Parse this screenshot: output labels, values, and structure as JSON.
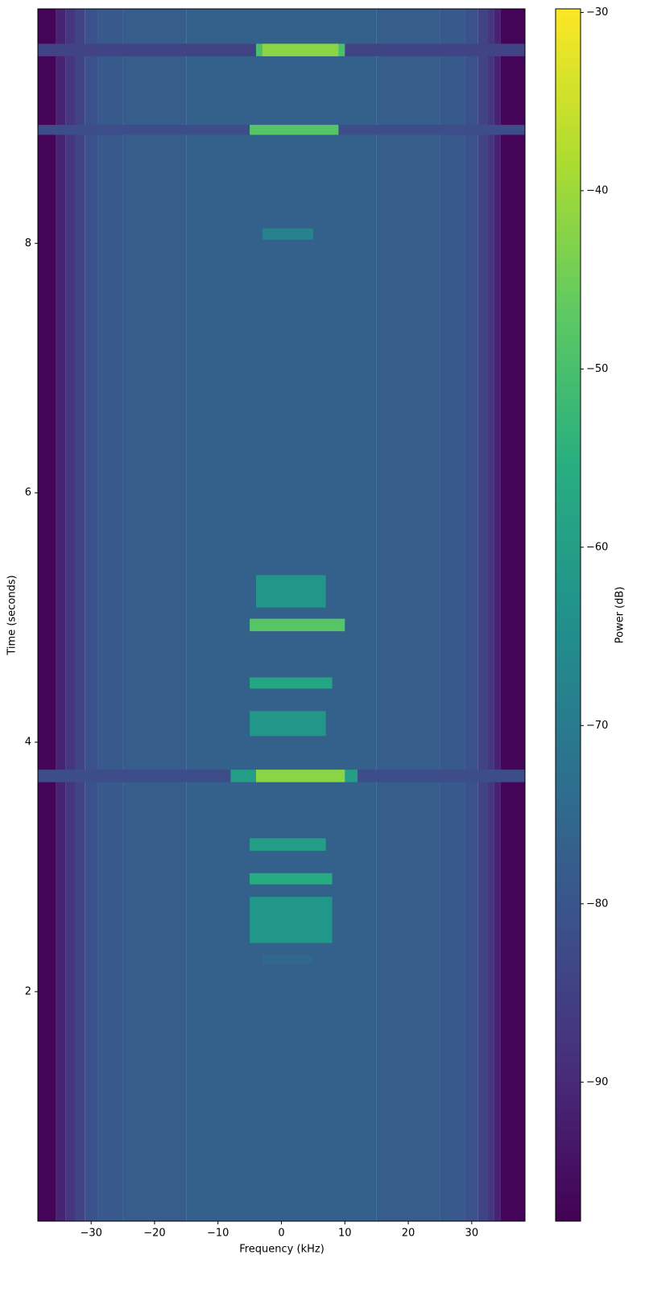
{
  "chart_data": {
    "type": "spectrogram",
    "xlabel": "Frequency (kHz)",
    "ylabel": "Time (seconds)",
    "xlim": [
      -38.4,
      38.4
    ],
    "ylim": [
      0.16,
      9.88
    ],
    "xticks": [
      {
        "value": -30,
        "label": "−30"
      },
      {
        "value": -20,
        "label": "−20"
      },
      {
        "value": -10,
        "label": "−10"
      },
      0,
      10,
      20,
      30
    ],
    "yticks": [
      2,
      4,
      6,
      8
    ],
    "colormap": "viridis",
    "colormap_colors": [
      "#440154",
      "#472d7b",
      "#3b528b",
      "#2c728e",
      "#21918c",
      "#28ae80",
      "#5ec962",
      "#addc30",
      "#fde725"
    ],
    "colorbar": {
      "label": "Power (dB)",
      "lim": [
        -97.8,
        -29.8
      ],
      "ticks": [
        {
          "value": -30,
          "label": "−30"
        },
        {
          "value": -40,
          "label": "−40"
        },
        {
          "value": -50,
          "label": "−50"
        },
        {
          "value": -60,
          "label": "−60"
        },
        {
          "value": -70,
          "label": "−70"
        },
        {
          "value": -80,
          "label": "−80"
        },
        {
          "value": -90,
          "label": "−90"
        }
      ]
    },
    "profile": {
      "bins": [
        -38.4,
        -35.5,
        -34,
        -32.5,
        -31,
        -29,
        -25,
        -15,
        15,
        25,
        29,
        31,
        32.5,
        33.5,
        34.5,
        38.4
      ],
      "values": [
        -97,
        -91,
        -87,
        -84,
        -81,
        -79,
        -78,
        -77,
        -78,
        -79,
        -81,
        -84,
        -87,
        -91,
        -97
      ]
    },
    "bursts": [
      {
        "t": [
          9.5,
          9.6
        ],
        "f": [
          -38.4,
          38.4
        ],
        "power": -84
      },
      {
        "t": [
          9.5,
          9.6
        ],
        "f": [
          -4,
          10
        ],
        "power": -50
      },
      {
        "t": [
          9.5,
          9.6
        ],
        "f": [
          -3,
          9
        ],
        "power": -42
      },
      {
        "t": [
          8.87,
          8.95
        ],
        "f": [
          -38.4,
          38.4
        ],
        "power": -82
      },
      {
        "t": [
          8.87,
          8.95
        ],
        "f": [
          -5,
          9
        ],
        "power": -48
      },
      {
        "t": [
          8.03,
          8.12
        ],
        "f": [
          -3,
          5
        ],
        "power": -68
      },
      {
        "t": [
          5.08,
          5.34
        ],
        "f": [
          -4,
          7
        ],
        "power": -62
      },
      {
        "t": [
          4.89,
          4.99
        ],
        "f": [
          -5,
          10
        ],
        "power": -48
      },
      {
        "t": [
          4.43,
          4.52
        ],
        "f": [
          -5,
          8
        ],
        "power": -58
      },
      {
        "t": [
          4.05,
          4.25
        ],
        "f": [
          -5,
          7
        ],
        "power": -62
      },
      {
        "t": [
          3.68,
          3.78
        ],
        "f": [
          -38.4,
          38.4
        ],
        "power": -82
      },
      {
        "t": [
          3.68,
          3.78
        ],
        "f": [
          -8,
          12
        ],
        "power": -60
      },
      {
        "t": [
          3.68,
          3.78
        ],
        "f": [
          -4,
          10
        ],
        "power": -42
      },
      {
        "t": [
          3.13,
          3.23
        ],
        "f": [
          -5,
          7
        ],
        "power": -60
      },
      {
        "t": [
          2.86,
          2.95
        ],
        "f": [
          -5,
          8
        ],
        "power": -56
      },
      {
        "t": [
          2.39,
          2.76
        ],
        "f": [
          -5,
          8
        ],
        "power": -62
      },
      {
        "t": [
          2.22,
          2.29
        ],
        "f": [
          -3,
          5
        ],
        "power": -75
      }
    ]
  }
}
